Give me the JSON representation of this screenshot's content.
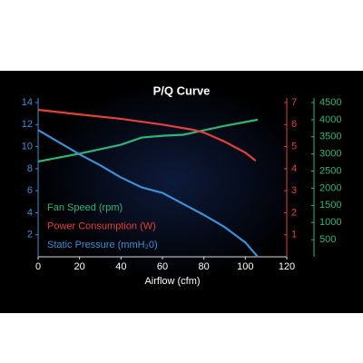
{
  "chart_data": {
    "type": "line",
    "title": "P/Q Curve",
    "x_label": "Airflow (cfm)",
    "xlim": [
      0,
      120
    ],
    "xticks": [
      0,
      20,
      40,
      60,
      80,
      100,
      120
    ],
    "ylim": [
      0,
      14
    ],
    "yticks": [
      2,
      4,
      6,
      8,
      10,
      12,
      14
    ],
    "y2lim": [
      0,
      7
    ],
    "y2ticks": [
      1,
      2,
      3,
      4,
      5,
      6,
      7
    ],
    "y3lim": [
      0,
      4500
    ],
    "y3ticks": [
      500,
      1000,
      1500,
      2000,
      2500,
      3000,
      3500,
      4000,
      4500
    ],
    "series": [
      {
        "name": "Fan Speed (rpm)",
        "color": "#2fb47a",
        "axis": "y3",
        "x": [
          0,
          20,
          40,
          50,
          60,
          70,
          80,
          90,
          106
        ],
        "values": [
          2780,
          3010,
          3270,
          3480,
          3530,
          3560,
          3690,
          3820,
          4000
        ]
      },
      {
        "name": "Power Consumption (W)",
        "color": "#e0413a",
        "axis": "y2",
        "x": [
          0,
          20,
          40,
          60,
          75,
          80,
          90,
          100,
          105
        ],
        "values": [
          6.67,
          6.46,
          6.26,
          6.0,
          5.76,
          5.64,
          5.23,
          4.73,
          4.36
        ]
      },
      {
        "name": "Static Pressure (mmH₂0)",
        "color": "#3d8fd6",
        "axis": "y",
        "x": [
          0,
          10,
          20,
          30,
          40,
          50,
          60,
          70,
          80,
          90,
          100,
          106
        ],
        "values": [
          11.5,
          10.4,
          9.3,
          8.3,
          7.2,
          6.3,
          5.8,
          4.8,
          3.8,
          2.7,
          1.3,
          0
        ]
      }
    ]
  }
}
